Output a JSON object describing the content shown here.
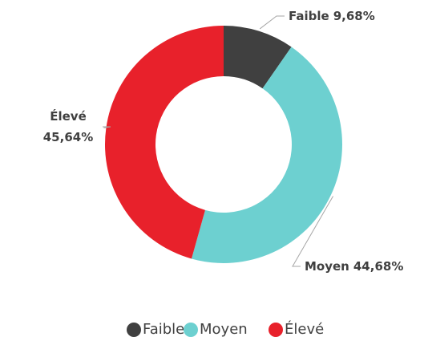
{
  "chart_data": {
    "type": "pie",
    "donut": true,
    "categories": [
      "Faible",
      "Moyen",
      "Élevé"
    ],
    "values": [
      9.68,
      44.68,
      45.64
    ],
    "value_labels": [
      "9,68%",
      "44,68%",
      "45,64%"
    ],
    "colors": [
      "#404040",
      "#6dd0d0",
      "#e8212b"
    ],
    "legend": "bottom"
  }
}
